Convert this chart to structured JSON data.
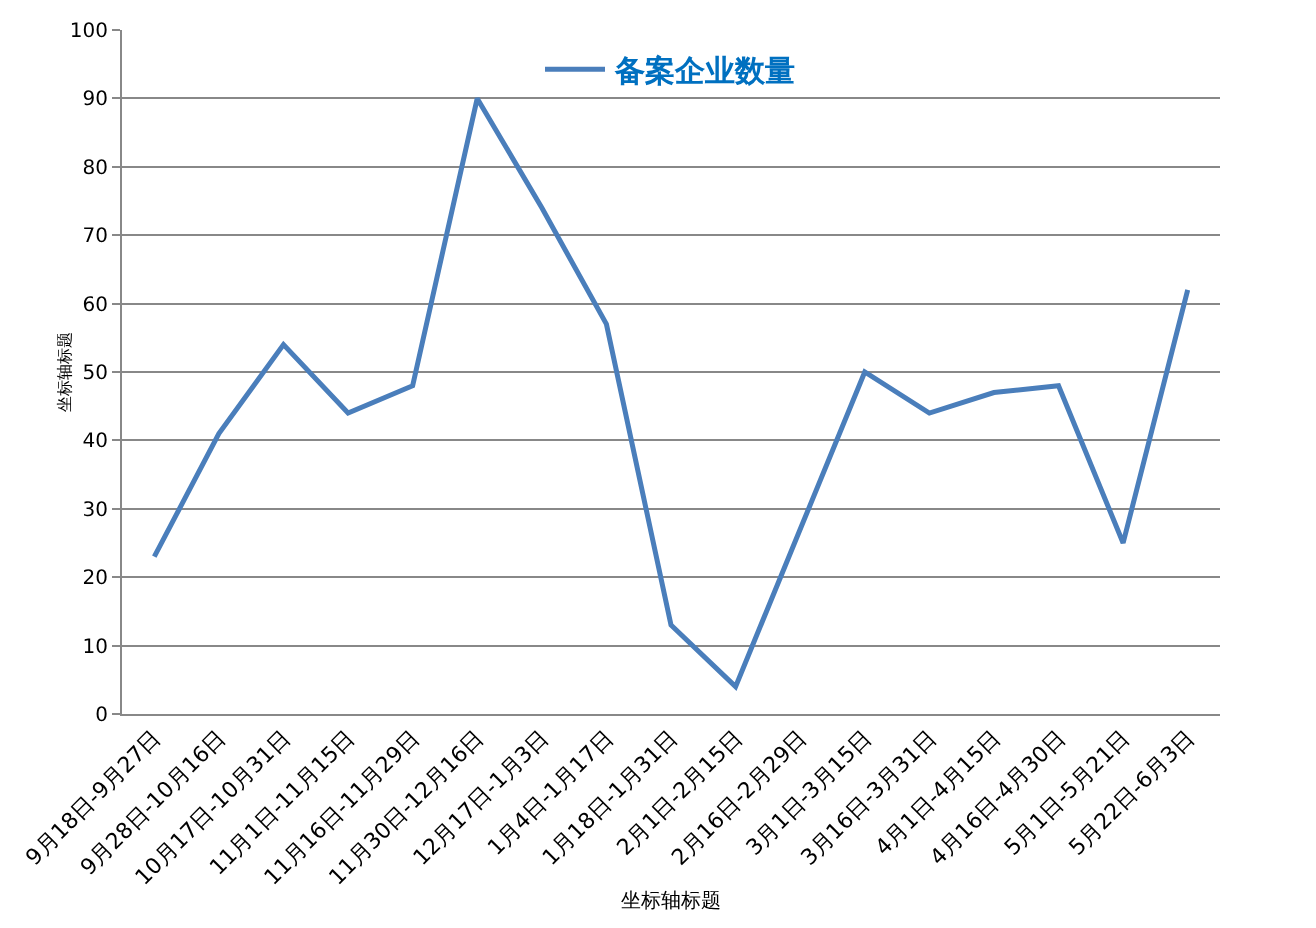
{
  "chart_data": {
    "type": "line",
    "xlabel": "坐标轴标题",
    "ylabel": "坐标轴标题",
    "categories": [
      "9月18日-9月27日",
      "9月28日-10月16日",
      "10月17日-10月31日",
      "11月1日-11月15日",
      "11月16日-11月29日",
      "11月30日-12月16日",
      "12月17日-1月3日",
      "1月4日-1月17日",
      "1月18日-1月31日",
      "2月1日-2月15日",
      "2月16日-2月29日",
      "3月1日-3月15日",
      "3月16日-3月31日",
      "4月1日-4月15日",
      "4月16日-4月30日",
      "5月1日-5月21日",
      "5月22日-6月3日"
    ],
    "series": [
      {
        "name": "备案企业数量",
        "color": "#4a7ebb",
        "values": [
          23,
          41,
          54,
          44,
          48,
          90,
          74,
          57,
          13,
          4,
          27,
          50,
          44,
          47,
          48,
          25,
          62
        ]
      }
    ],
    "ylim": [
      0,
      100
    ],
    "yticks": [
      0,
      10,
      20,
      30,
      40,
      50,
      60,
      70,
      80,
      90,
      100
    ],
    "grid": "y",
    "legend": "top",
    "marker": "none",
    "line_style": "solid"
  }
}
